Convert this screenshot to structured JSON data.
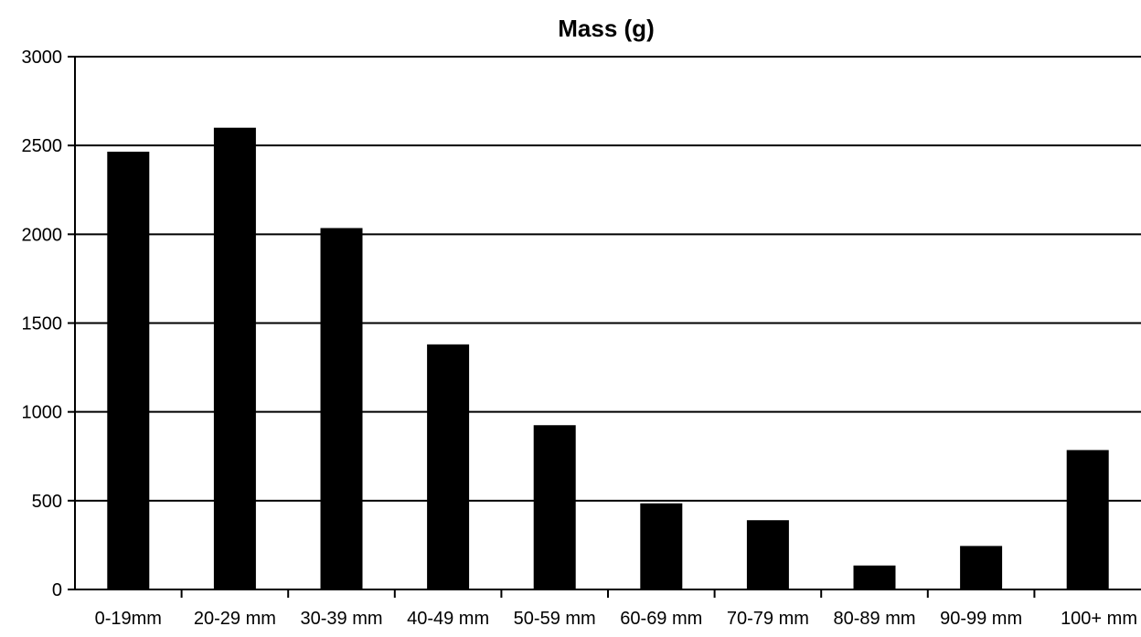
{
  "chart_data": {
    "type": "bar",
    "title": "Mass (g)",
    "xlabel": "",
    "ylabel": "",
    "categories": [
      "0-19mm",
      "20-29 mm",
      "30-39 mm",
      "40-49 mm",
      "50-59 mm",
      "60-69 mm",
      "70-79 mm",
      "80-89 mm",
      "90-99 mm",
      "100+ mm"
    ],
    "values": [
      2465,
      2600,
      2035,
      1380,
      925,
      485,
      390,
      135,
      245,
      785
    ],
    "ylim": [
      0,
      3000
    ],
    "yticks": [
      0,
      500,
      1000,
      1500,
      2000,
      2500,
      3000
    ],
    "grid": true,
    "legend": "none",
    "bar_color": "#000000",
    "grid_color": "#000000",
    "background": "#ffffff"
  }
}
